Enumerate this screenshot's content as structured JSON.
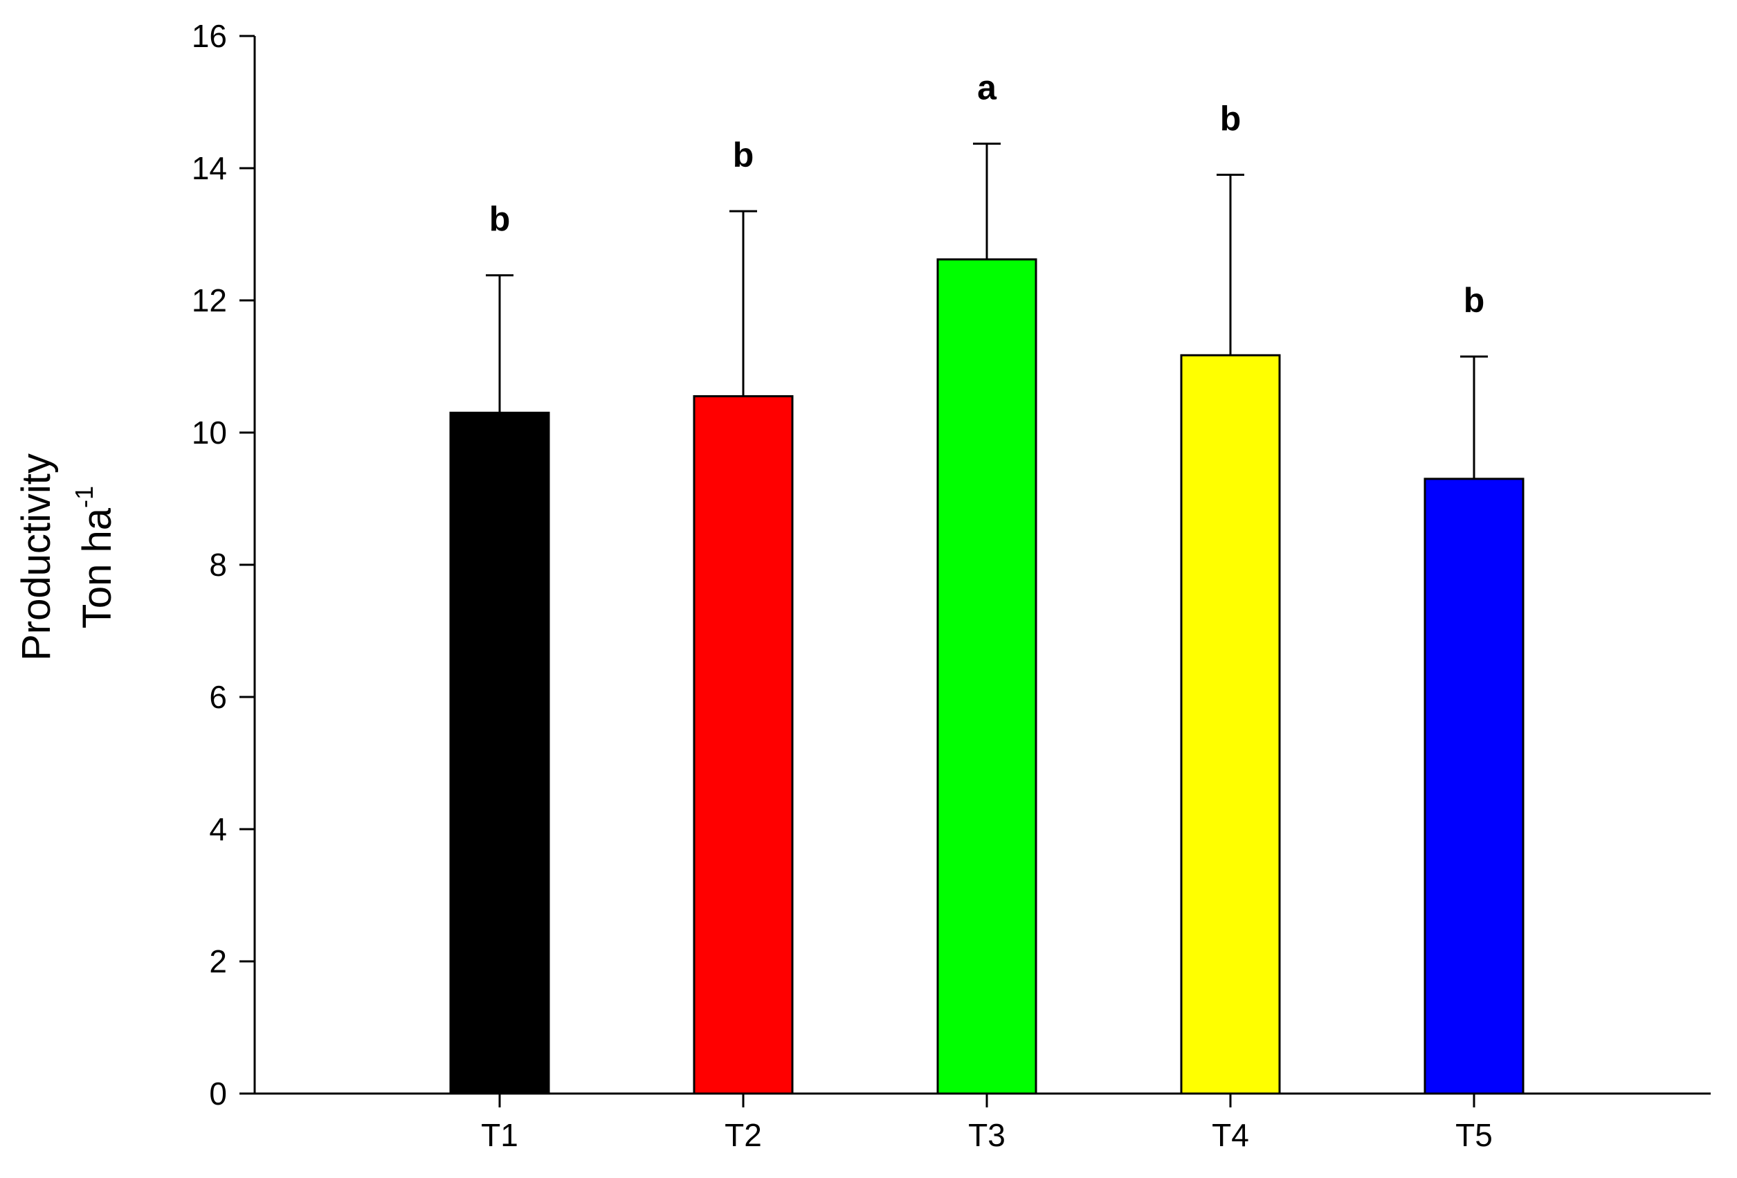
{
  "chart_data": {
    "type": "bar",
    "categories": [
      "T1",
      "T2",
      "T3",
      "T4",
      "T5"
    ],
    "values": [
      10.3,
      10.55,
      12.62,
      11.17,
      9.3
    ],
    "error_upper": [
      12.38,
      13.35,
      14.37,
      13.9,
      11.15
    ],
    "significance": [
      "b",
      "b",
      "a",
      "b",
      "b"
    ],
    "colors": [
      "#000000",
      "#ff0000",
      "#00ff00",
      "#ffff00",
      "#0000ff"
    ],
    "ylabel_line1": "Productivity",
    "ylabel_line2": "Ton ha",
    "ylabel_superscript": "-1",
    "xlabel": "",
    "ylim": [
      0,
      16
    ],
    "yticks": [
      "0",
      "2",
      "4",
      "6",
      "8",
      "10",
      "12",
      "14",
      "16"
    ],
    "ytick_values": [
      0,
      2,
      4,
      6,
      8,
      10,
      12,
      14,
      16
    ],
    "grid": false
  }
}
